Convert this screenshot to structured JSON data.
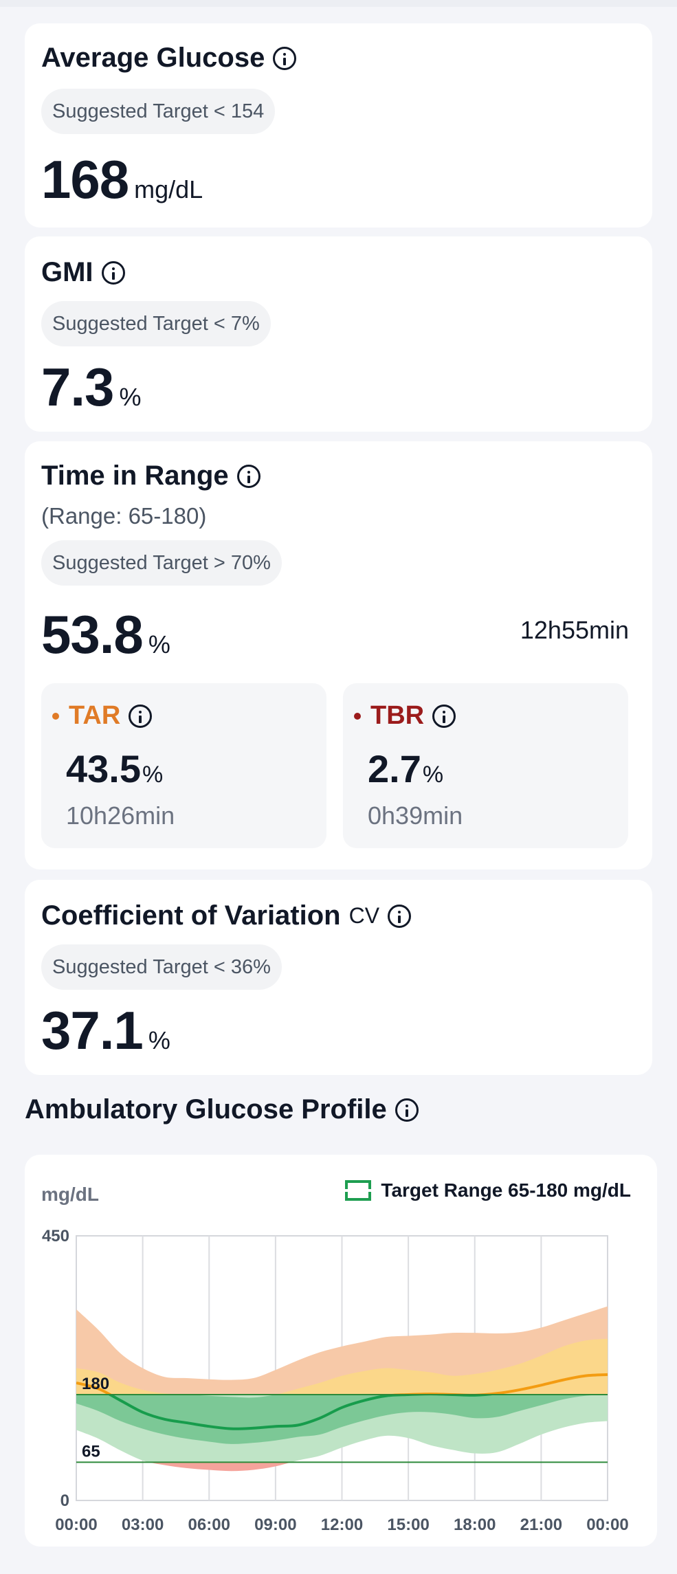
{
  "avg": {
    "title": "Average Glucose",
    "target": "Suggested Target < 154",
    "value": "168",
    "unit": "mg/dL"
  },
  "gmi": {
    "title": "GMI",
    "target": "Suggested Target < 7%",
    "value": "7.3",
    "unit": "%"
  },
  "tir": {
    "title": "Time in Range",
    "range": "(Range: 65-180)",
    "target": "Suggested Target > 70%",
    "value": "53.8",
    "unit": "%",
    "duration": "12h55min",
    "tar": {
      "label": "TAR",
      "value": "43.5",
      "unit": "%",
      "duration": "10h26min",
      "color": "#e07b27"
    },
    "tbr": {
      "label": "TBR",
      "value": "2.7",
      "unit": "%",
      "duration": "0h39min",
      "color": "#9b1c1c"
    }
  },
  "cv": {
    "title": "Coefficient of Variation",
    "tag": "CV",
    "target": "Suggested Target < 36%",
    "value": "37.1",
    "unit": "%"
  },
  "agp": {
    "title": "Ambulatory Glucose Profile",
    "chart_data": {
      "type": "area",
      "ylabel": "mg/dL",
      "legend": "Target Range 65-180 mg/dL",
      "legend_position": "top-right",
      "ylim": [
        0,
        450
      ],
      "y_ticks": [
        "450",
        "0"
      ],
      "reference_lines": [
        {
          "label": "180",
          "value": 180
        },
        {
          "label": "65",
          "value": 65
        }
      ],
      "x_ticks": [
        "00:00",
        "03:00",
        "06:00",
        "09:00",
        "12:00",
        "15:00",
        "18:00",
        "21:00",
        "00:00"
      ],
      "x": [
        0,
        1,
        2,
        3,
        4,
        5,
        6,
        7,
        8,
        9,
        10,
        11,
        12,
        13,
        14,
        15,
        16,
        17,
        18,
        19,
        20,
        21,
        22,
        23,
        24
      ],
      "series": [
        {
          "values": [
            325,
            290,
            250,
            225,
            210,
            208,
            206,
            205,
            208,
            222,
            238,
            252,
            262,
            270,
            278,
            280,
            282,
            285,
            285,
            284,
            286,
            294,
            306,
            318,
            330
          ]
        },
        {
          "values": [
            225,
            218,
            200,
            188,
            182,
            180,
            178,
            176,
            175,
            180,
            190,
            200,
            212,
            220,
            225,
            222,
            218,
            212,
            215,
            222,
            232,
            246,
            262,
            272,
            275
          ]
        },
        {
          "values": [
            200,
            190,
            170,
            150,
            138,
            132,
            126,
            122,
            123,
            126,
            128,
            140,
            158,
            170,
            178,
            180,
            181,
            180,
            179,
            182,
            188,
            196,
            205,
            212,
            214
          ]
        },
        {
          "values": [
            165,
            152,
            135,
            122,
            112,
            105,
            100,
            96,
            98,
            102,
            108,
            112,
            125,
            136,
            145,
            150,
            150,
            146,
            140,
            142,
            152,
            162,
            172,
            178,
            180
          ]
        },
        {
          "values": [
            120,
            105,
            85,
            68,
            60,
            55,
            52,
            50,
            52,
            58,
            68,
            76,
            90,
            102,
            110,
            106,
            94,
            86,
            80,
            82,
            96,
            112,
            124,
            132,
            135
          ]
        }
      ]
    }
  }
}
